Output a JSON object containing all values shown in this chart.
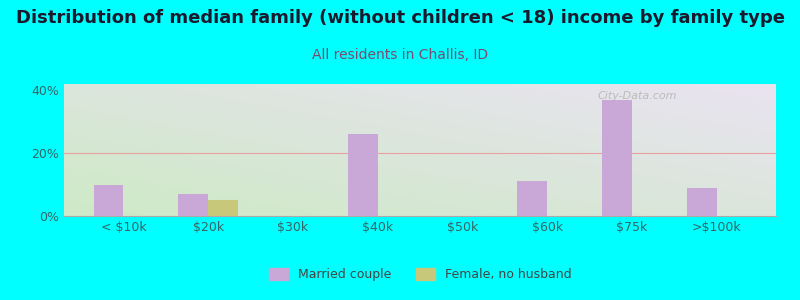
{
  "title": "Distribution of median family (without children < 18) income by family type",
  "subtitle": "All residents in Challis, ID",
  "background_color": "#00FFFF",
  "categories": [
    "< $10k",
    "$20k",
    "$30k",
    "$40k",
    "$50k",
    "$60k",
    "$75k",
    ">$100k"
  ],
  "married_couple": [
    10,
    7,
    0,
    26,
    0,
    11,
    37,
    9
  ],
  "female_no_husband": [
    0,
    5,
    0,
    0,
    0,
    0,
    0,
    0
  ],
  "married_color": "#C9A8D8",
  "female_color": "#C8C87A",
  "bar_width": 0.35,
  "ylim": [
    0,
    42
  ],
  "yticks": [
    0,
    20,
    40
  ],
  "ytick_labels": [
    "0%",
    "20%",
    "40%"
  ],
  "legend_labels": [
    "Married couple",
    "Female, no husband"
  ],
  "watermark": "City-Data.com",
  "title_fontsize": 13,
  "subtitle_fontsize": 10,
  "tick_fontsize": 9,
  "legend_fontsize": 9,
  "title_color": "#1a1a2e",
  "subtitle_color": "#7B4A6E",
  "tick_color": "#336666",
  "grad_bottom_left": "#c8e8c0",
  "grad_top_right": "#e8e0f0"
}
